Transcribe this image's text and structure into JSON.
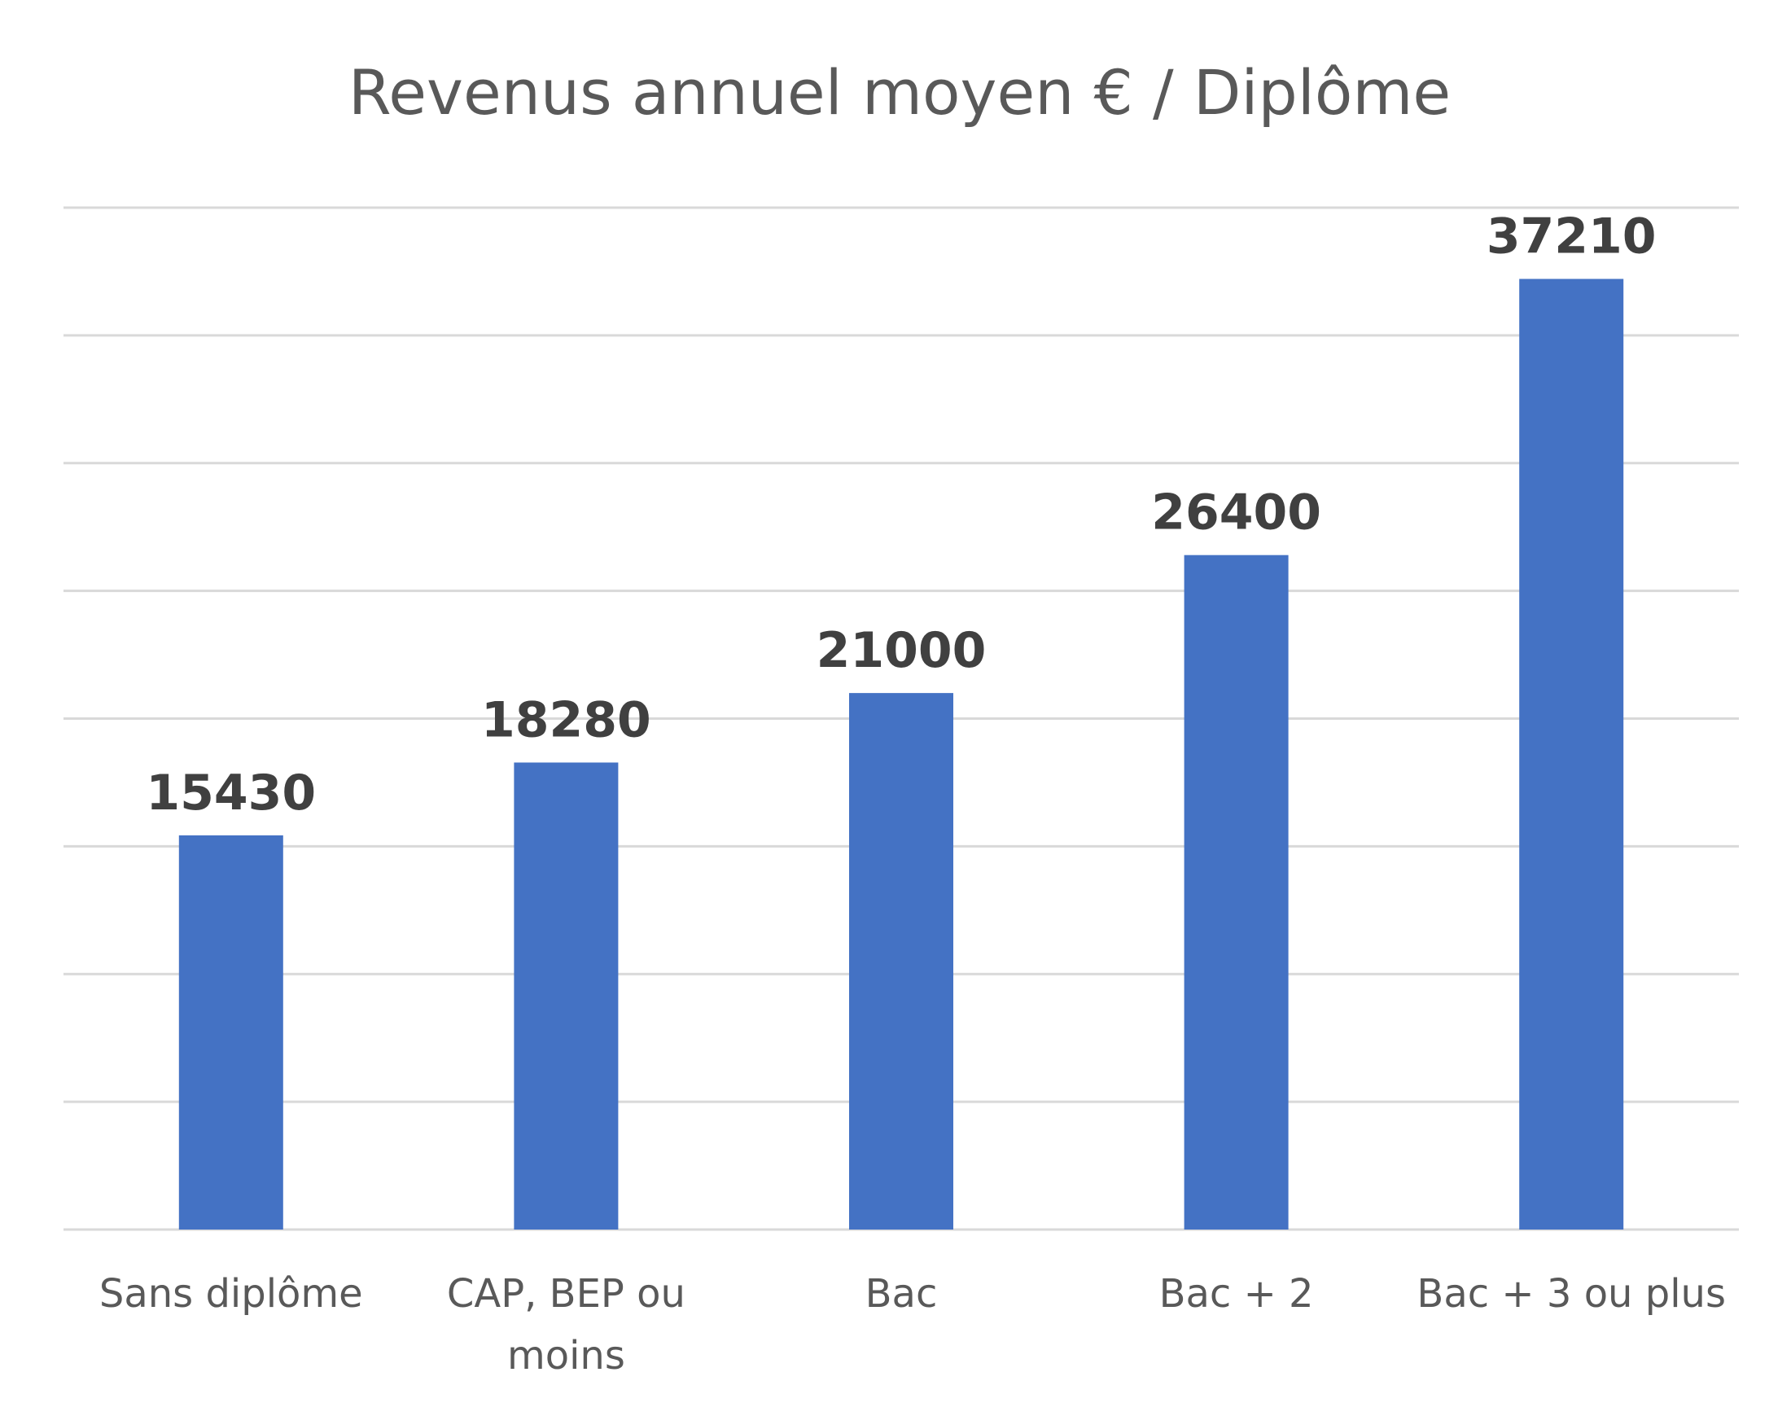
{
  "chart_data": {
    "type": "bar",
    "title": "Revenus annuel moyen € / Diplôme",
    "categories": [
      [
        "Sans diplôme"
      ],
      [
        "CAP, BEP ou",
        "moins"
      ],
      [
        "Bac"
      ],
      [
        "Bac + 2"
      ],
      [
        "Bac + 3 ou plus"
      ]
    ],
    "values": [
      15430,
      18280,
      21000,
      26400,
      37210
    ],
    "data_labels": [
      "15430",
      "18280",
      "21000",
      "26400",
      "37210"
    ],
    "xlabel": "",
    "ylabel": "",
    "ylim": [
      0,
      40000
    ],
    "y_gridline_step": 5000,
    "grid": true,
    "y_axis_labels_shown": false,
    "legend": "none",
    "bar_color": "#4472C4"
  }
}
